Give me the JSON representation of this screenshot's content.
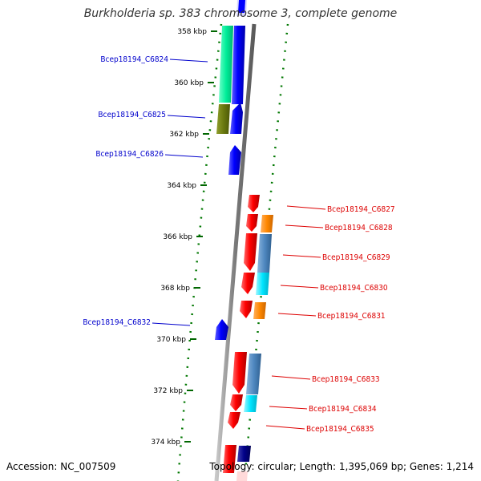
{
  "title": "Burkholderia sp. 383 chromosome 3, complete genome",
  "footer": {
    "accession": "Accession: NC_007509",
    "summary": "Topology: circular; Length: 1,395,069 bp; Genes: 1,214"
  },
  "scale": {
    "ticks": [
      "358 kbp",
      "360 kbp",
      "362 kbp",
      "364 kbp",
      "366 kbp",
      "368 kbp",
      "370 kbp",
      "372 kbp",
      "374 kbp"
    ]
  },
  "genes": [
    {
      "label": "Bcep18194_C6824",
      "strand": "forward",
      "color": "#0000cc"
    },
    {
      "label": "Bcep18194_C6825",
      "strand": "forward",
      "color": "#0000cc"
    },
    {
      "label": "Bcep18194_C6826",
      "strand": "forward",
      "color": "#0000cc"
    },
    {
      "label": "Bcep18194_C6827",
      "strand": "reverse",
      "color": "#dd0000"
    },
    {
      "label": "Bcep18194_C6828",
      "strand": "reverse",
      "color": "#dd0000"
    },
    {
      "label": "Bcep18194_C6829",
      "strand": "reverse",
      "color": "#dd0000"
    },
    {
      "label": "Bcep18194_C6830",
      "strand": "reverse",
      "color": "#dd0000"
    },
    {
      "label": "Bcep18194_C6831",
      "strand": "reverse",
      "color": "#dd0000"
    },
    {
      "label": "Bcep18194_C6832",
      "strand": "forward",
      "color": "#0000cc"
    },
    {
      "label": "Bcep18194_C6833",
      "strand": "reverse",
      "color": "#dd0000"
    },
    {
      "label": "Bcep18194_C6834",
      "strand": "reverse",
      "color": "#dd0000"
    },
    {
      "label": "Bcep18194_C6835",
      "strand": "reverse",
      "color": "#dd0000"
    }
  ],
  "colors": {
    "forward_gene": "#0000ff",
    "reverse_gene": "#ff0000",
    "cog_green": "#00ee99",
    "cog_olive": "#6b7a10",
    "cog_orange": "#ff8800",
    "cog_steelblue": "#4f88c0",
    "cog_cyan": "#00e5ff",
    "cog_navy": "#000088",
    "backbone": "#888888",
    "gc_dots": "#007700"
  }
}
